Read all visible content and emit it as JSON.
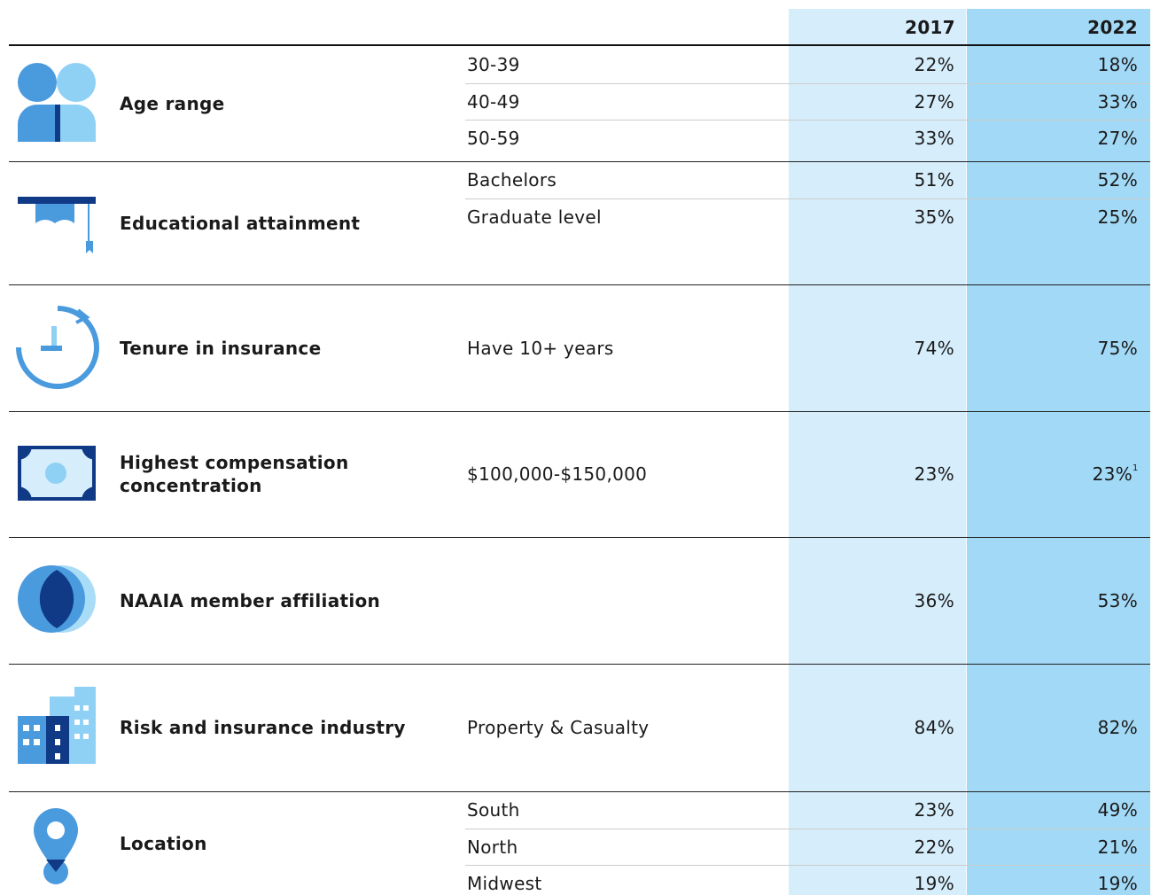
{
  "header": {
    "col1": "2017",
    "col2": "2022"
  },
  "sections": [
    {
      "label": "Age range",
      "rows": [
        {
          "label": "30-39",
          "v2017": "22%",
          "v2022": "18%"
        },
        {
          "label": "40-49",
          "v2017": "27%",
          "v2022": "33%"
        },
        {
          "label": "50-59",
          "v2017": "33%",
          "v2022": "27%"
        }
      ]
    },
    {
      "label": "Educational attainment",
      "rows": [
        {
          "label": "Bachelors",
          "v2017": "51%",
          "v2022": "52%"
        },
        {
          "label": "Graduate level",
          "v2017": "35%",
          "v2022": "25%"
        }
      ]
    },
    {
      "label": "Tenure in insurance",
      "rows": [
        {
          "label": "Have 10+ years",
          "v2017": "74%",
          "v2022": "75%"
        }
      ]
    },
    {
      "label": "Highest compensation concentration",
      "rows": [
        {
          "label": "$100,000-$150,000",
          "v2017": "23%",
          "v2022": "23%",
          "note": "1"
        }
      ]
    },
    {
      "label": "NAAIA member affiliation",
      "rows": [
        {
          "v2017": "36%",
          "v2022": "53%"
        }
      ]
    },
    {
      "label": "Risk and insurance industry",
      "rows": [
        {
          "label": "Property & Casualty",
          "v2017": "84%",
          "v2022": "82%"
        }
      ]
    },
    {
      "label": "Location",
      "rows": [
        {
          "label": "South",
          "v2017": "23%",
          "v2022": "49%"
        },
        {
          "label": "North",
          "v2017": "22%",
          "v2022": "21%"
        },
        {
          "label": "Midwest",
          "v2017": "19%",
          "v2022": "19%"
        }
      ]
    }
  ]
}
